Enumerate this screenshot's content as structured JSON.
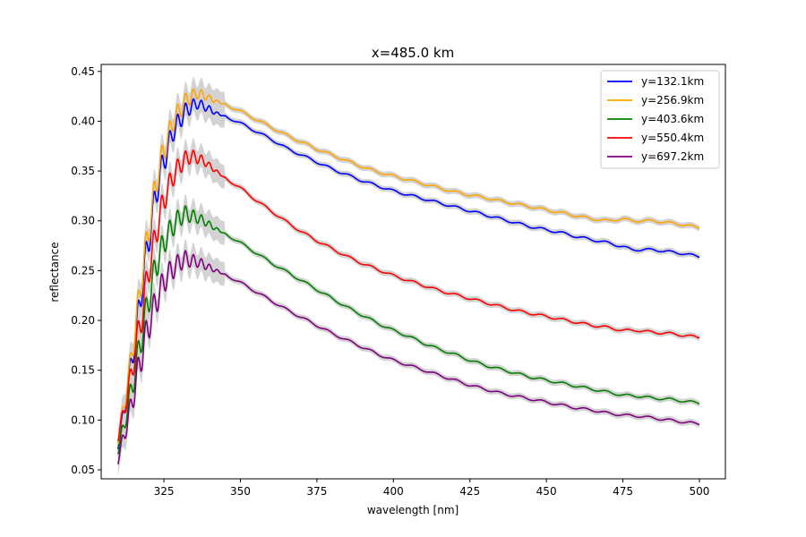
{
  "chart_data": {
    "type": "line",
    "title": "x=485.0 km",
    "xlabel": "wavelength [nm]",
    "ylabel": "reflectance",
    "xlim": [
      304.5,
      508.5
    ],
    "ylim": [
      0.041,
      0.457
    ],
    "xticks": [
      325,
      350,
      375,
      400,
      425,
      450,
      475,
      500
    ],
    "yticks": [
      0.05,
      0.1,
      0.15,
      0.2,
      0.25,
      0.3,
      0.35,
      0.4,
      0.45
    ],
    "ytick_labels": [
      "0.05",
      "0.10",
      "0.15",
      "0.20",
      "0.25",
      "0.30",
      "0.35",
      "0.40",
      "0.45"
    ],
    "grid": false,
    "legend_position": "top-right",
    "band_color": "#d3d3d3",
    "series": [
      {
        "name": "y=132.1km",
        "color": "#0000ff",
        "points": [
          [
            310,
            0.075
          ],
          [
            312,
            0.11
          ],
          [
            314,
            0.15
          ],
          [
            316,
            0.19
          ],
          [
            318,
            0.24
          ],
          [
            320,
            0.28
          ],
          [
            322,
            0.32
          ],
          [
            324,
            0.35
          ],
          [
            326,
            0.37
          ],
          [
            328,
            0.39
          ],
          [
            330,
            0.4
          ],
          [
            332,
            0.41
          ],
          [
            334,
            0.415
          ],
          [
            336,
            0.418
          ],
          [
            338,
            0.415
          ],
          [
            340,
            0.412
          ],
          [
            342,
            0.408
          ],
          [
            345,
            0.405
          ],
          [
            350,
            0.398
          ],
          [
            355,
            0.39
          ],
          [
            360,
            0.382
          ],
          [
            365,
            0.373
          ],
          [
            370,
            0.366
          ],
          [
            375,
            0.359
          ],
          [
            380,
            0.352
          ],
          [
            385,
            0.346
          ],
          [
            390,
            0.34
          ],
          [
            395,
            0.335
          ],
          [
            400,
            0.33
          ],
          [
            405,
            0.326
          ],
          [
            410,
            0.322
          ],
          [
            415,
            0.318
          ],
          [
            420,
            0.314
          ],
          [
            425,
            0.31
          ],
          [
            430,
            0.306
          ],
          [
            435,
            0.302
          ],
          [
            440,
            0.298
          ],
          [
            445,
            0.294
          ],
          [
            450,
            0.291
          ],
          [
            455,
            0.288
          ],
          [
            460,
            0.284
          ],
          [
            465,
            0.281
          ],
          [
            470,
            0.278
          ],
          [
            475,
            0.274
          ],
          [
            478,
            0.271
          ],
          [
            485,
            0.271
          ],
          [
            490,
            0.269
          ],
          [
            495,
            0.267
          ],
          [
            500,
            0.264
          ]
        ]
      },
      {
        "name": "y=256.9km",
        "color": "#ffa500",
        "points": [
          [
            310,
            0.08
          ],
          [
            312,
            0.115
          ],
          [
            314,
            0.155
          ],
          [
            316,
            0.2
          ],
          [
            318,
            0.25
          ],
          [
            320,
            0.29
          ],
          [
            322,
            0.33
          ],
          [
            324,
            0.36
          ],
          [
            326,
            0.38
          ],
          [
            328,
            0.4
          ],
          [
            330,
            0.41
          ],
          [
            332,
            0.42
          ],
          [
            334,
            0.425
          ],
          [
            336,
            0.428
          ],
          [
            338,
            0.426
          ],
          [
            340,
            0.423
          ],
          [
            342,
            0.42
          ],
          [
            345,
            0.417
          ],
          [
            350,
            0.41
          ],
          [
            355,
            0.402
          ],
          [
            360,
            0.394
          ],
          [
            365,
            0.386
          ],
          [
            370,
            0.379
          ],
          [
            375,
            0.372
          ],
          [
            380,
            0.366
          ],
          [
            385,
            0.36
          ],
          [
            390,
            0.354
          ],
          [
            395,
            0.349
          ],
          [
            400,
            0.345
          ],
          [
            405,
            0.341
          ],
          [
            410,
            0.337
          ],
          [
            415,
            0.333
          ],
          [
            420,
            0.329
          ],
          [
            425,
            0.326
          ],
          [
            430,
            0.323
          ],
          [
            435,
            0.32
          ],
          [
            440,
            0.317
          ],
          [
            445,
            0.314
          ],
          [
            450,
            0.311
          ],
          [
            455,
            0.308
          ],
          [
            460,
            0.305
          ],
          [
            465,
            0.302
          ],
          [
            470,
            0.3
          ],
          [
            475,
            0.302
          ],
          [
            478,
            0.3
          ],
          [
            485,
            0.3
          ],
          [
            490,
            0.298
          ],
          [
            495,
            0.296
          ],
          [
            500,
            0.293
          ]
        ]
      },
      {
        "name": "y=403.6km",
        "color": "#008000",
        "points": [
          [
            310,
            0.07
          ],
          [
            312,
            0.095
          ],
          [
            314,
            0.125
          ],
          [
            316,
            0.155
          ],
          [
            318,
            0.19
          ],
          [
            320,
            0.22
          ],
          [
            322,
            0.25
          ],
          [
            324,
            0.27
          ],
          [
            326,
            0.285
          ],
          [
            328,
            0.295
          ],
          [
            330,
            0.303
          ],
          [
            332,
            0.307
          ],
          [
            334,
            0.305
          ],
          [
            336,
            0.303
          ],
          [
            338,
            0.3
          ],
          [
            340,
            0.296
          ],
          [
            342,
            0.292
          ],
          [
            345,
            0.287
          ],
          [
            350,
            0.278
          ],
          [
            355,
            0.268
          ],
          [
            360,
            0.258
          ],
          [
            365,
            0.249
          ],
          [
            370,
            0.24
          ],
          [
            375,
            0.231
          ],
          [
            380,
            0.222
          ],
          [
            385,
            0.213
          ],
          [
            390,
            0.205
          ],
          [
            395,
            0.197
          ],
          [
            400,
            0.19
          ],
          [
            405,
            0.184
          ],
          [
            410,
            0.177
          ],
          [
            415,
            0.171
          ],
          [
            420,
            0.166
          ],
          [
            425,
            0.16
          ],
          [
            430,
            0.155
          ],
          [
            435,
            0.151
          ],
          [
            440,
            0.147
          ],
          [
            445,
            0.143
          ],
          [
            450,
            0.14
          ],
          [
            455,
            0.137
          ],
          [
            460,
            0.134
          ],
          [
            465,
            0.131
          ],
          [
            470,
            0.128
          ],
          [
            475,
            0.125
          ],
          [
            480,
            0.124
          ],
          [
            485,
            0.122
          ],
          [
            490,
            0.121
          ],
          [
            495,
            0.119
          ],
          [
            500,
            0.117
          ]
        ]
      },
      {
        "name": "y=550.4km",
        "color": "#ff0000",
        "points": [
          [
            310,
            0.083
          ],
          [
            312,
            0.11
          ],
          [
            314,
            0.14
          ],
          [
            316,
            0.175
          ],
          [
            318,
            0.21
          ],
          [
            320,
            0.25
          ],
          [
            322,
            0.28
          ],
          [
            324,
            0.31
          ],
          [
            326,
            0.33
          ],
          [
            328,
            0.345
          ],
          [
            330,
            0.355
          ],
          [
            332,
            0.362
          ],
          [
            334,
            0.365
          ],
          [
            336,
            0.363
          ],
          [
            338,
            0.36
          ],
          [
            340,
            0.355
          ],
          [
            342,
            0.35
          ],
          [
            345,
            0.343
          ],
          [
            350,
            0.333
          ],
          [
            355,
            0.321
          ],
          [
            360,
            0.31
          ],
          [
            365,
            0.299
          ],
          [
            370,
            0.289
          ],
          [
            375,
            0.28
          ],
          [
            380,
            0.272
          ],
          [
            385,
            0.264
          ],
          [
            390,
            0.257
          ],
          [
            395,
            0.251
          ],
          [
            400,
            0.245
          ],
          [
            405,
            0.24
          ],
          [
            410,
            0.235
          ],
          [
            415,
            0.23
          ],
          [
            420,
            0.226
          ],
          [
            425,
            0.222
          ],
          [
            430,
            0.218
          ],
          [
            435,
            0.214
          ],
          [
            440,
            0.21
          ],
          [
            445,
            0.207
          ],
          [
            450,
            0.204
          ],
          [
            455,
            0.201
          ],
          [
            460,
            0.198
          ],
          [
            465,
            0.195
          ],
          [
            470,
            0.193
          ],
          [
            475,
            0.19
          ],
          [
            480,
            0.19
          ],
          [
            485,
            0.188
          ],
          [
            490,
            0.187
          ],
          [
            495,
            0.185
          ],
          [
            500,
            0.183
          ]
        ]
      },
      {
        "name": "y=697.2km",
        "color": "#800080",
        "points": [
          [
            310,
            0.06
          ],
          [
            312,
            0.085
          ],
          [
            314,
            0.11
          ],
          [
            316,
            0.14
          ],
          [
            318,
            0.17
          ],
          [
            320,
            0.195
          ],
          [
            322,
            0.215
          ],
          [
            324,
            0.232
          ],
          [
            326,
            0.245
          ],
          [
            328,
            0.252
          ],
          [
            330,
            0.258
          ],
          [
            332,
            0.262
          ],
          [
            334,
            0.26
          ],
          [
            336,
            0.259
          ],
          [
            338,
            0.256
          ],
          [
            340,
            0.253
          ],
          [
            342,
            0.25
          ],
          [
            345,
            0.246
          ],
          [
            350,
            0.238
          ],
          [
            355,
            0.229
          ],
          [
            360,
            0.22
          ],
          [
            365,
            0.211
          ],
          [
            370,
            0.203
          ],
          [
            375,
            0.195
          ],
          [
            380,
            0.187
          ],
          [
            385,
            0.18
          ],
          [
            390,
            0.173
          ],
          [
            395,
            0.166
          ],
          [
            400,
            0.16
          ],
          [
            405,
            0.155
          ],
          [
            410,
            0.15
          ],
          [
            415,
            0.145
          ],
          [
            420,
            0.14
          ],
          [
            425,
            0.135
          ],
          [
            430,
            0.131
          ],
          [
            435,
            0.127
          ],
          [
            440,
            0.124
          ],
          [
            445,
            0.121
          ],
          [
            450,
            0.118
          ],
          [
            455,
            0.115
          ],
          [
            460,
            0.112
          ],
          [
            465,
            0.11
          ],
          [
            470,
            0.107
          ],
          [
            475,
            0.105
          ],
          [
            480,
            0.104
          ],
          [
            485,
            0.102
          ],
          [
            490,
            0.1
          ],
          [
            495,
            0.098
          ],
          [
            500,
            0.096
          ]
        ]
      }
    ]
  }
}
